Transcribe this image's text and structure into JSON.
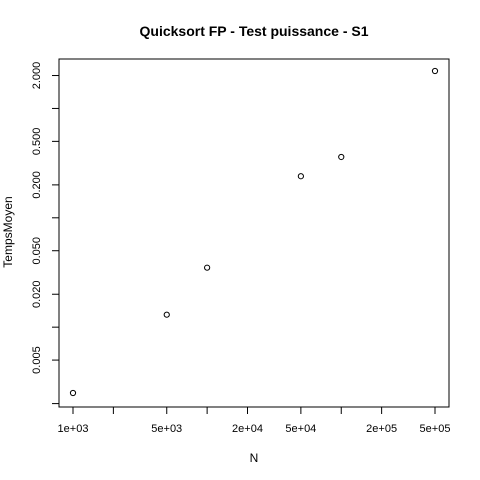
{
  "chart_data": {
    "type": "scatter",
    "title": "Quicksort FP - Test puissance - S1",
    "xlabel": "N",
    "ylabel": "TempsMoyen",
    "x_scale": "log",
    "y_scale": "log",
    "xlim": [
      1000,
      500000
    ],
    "ylim": [
      0.002,
      2.5
    ],
    "x_ticks": [
      1000,
      2000,
      5000,
      10000,
      20000,
      50000,
      100000,
      200000,
      500000
    ],
    "x_tick_labels": [
      "1e+03",
      "",
      "5e+03",
      "",
      "2e+04",
      "5e+04",
      "",
      "2e+05",
      "5e+05"
    ],
    "y_ticks": [
      0.002,
      0.005,
      0.01,
      0.02,
      0.05,
      0.1,
      0.2,
      0.5,
      1,
      2
    ],
    "y_tick_labels": [
      "",
      "0.005",
      "",
      "0.020",
      "0.050",
      "",
      "0.200",
      "0.500",
      "",
      "2.000"
    ],
    "x": [
      1000,
      5000,
      10000,
      50000,
      100000,
      500000
    ],
    "y": [
      0.0025,
      0.013,
      0.035,
      0.24,
      0.36,
      2.2
    ],
    "grid": false,
    "legend": "none"
  }
}
